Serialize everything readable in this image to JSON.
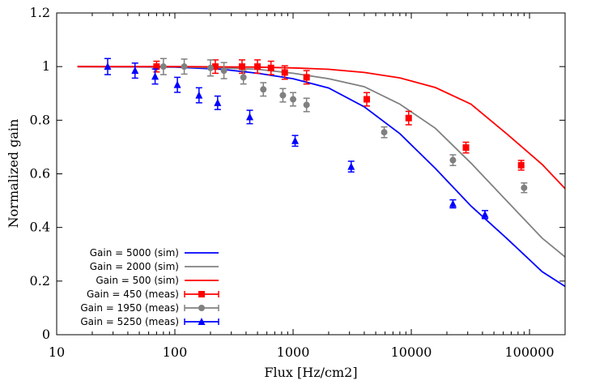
{
  "chart_data": {
    "type": "line",
    "title": "",
    "xlabel": "Flux [Hz/cm2]",
    "ylabel": "Normalized gain",
    "xscale": "log",
    "xlim": [
      10,
      200000
    ],
    "ylim": [
      0,
      1.2
    ],
    "xticks": [
      10,
      100,
      1000,
      10000,
      100000
    ],
    "xtick_labels": [
      "10",
      "100",
      "1000",
      "10000",
      "100000"
    ],
    "yticks": [
      0,
      0.2,
      0.4,
      0.6,
      0.8,
      1.0,
      1.2
    ],
    "ytick_labels": [
      "0",
      "0.2",
      "0.4",
      "0.6",
      "0.8",
      "1",
      "1.2"
    ],
    "legend_position": "bottom-left",
    "series": [
      {
        "name": "Gain = 5000 (sim)",
        "kind": "line",
        "color": "#0000ff",
        "x": [
          15,
          100,
          250,
          500,
          1000,
          2000,
          4000,
          8000,
          16000,
          32000,
          64000,
          128000,
          200000
        ],
        "y": [
          1.0,
          0.998,
          0.99,
          0.975,
          0.955,
          0.92,
          0.85,
          0.75,
          0.62,
          0.48,
          0.36,
          0.235,
          0.18
        ]
      },
      {
        "name": "Gain = 2000 (sim)",
        "kind": "line",
        "color": "#808080",
        "x": [
          15,
          100,
          250,
          500,
          1000,
          2000,
          4000,
          8000,
          16000,
          32000,
          64000,
          128000,
          200000
        ],
        "y": [
          1.0,
          0.999,
          0.995,
          0.99,
          0.975,
          0.955,
          0.925,
          0.86,
          0.77,
          0.64,
          0.5,
          0.36,
          0.29
        ]
      },
      {
        "name": "Gain = 500 (sim)",
        "kind": "line",
        "color": "#ff0000",
        "x": [
          15,
          100,
          250,
          500,
          1000,
          2000,
          4000,
          8000,
          16000,
          32000,
          64000,
          128000,
          200000
        ],
        "y": [
          1.0,
          1.0,
          0.999,
          0.998,
          0.995,
          0.99,
          0.978,
          0.958,
          0.922,
          0.86,
          0.75,
          0.635,
          0.545
        ]
      },
      {
        "name": "Gain = 450 (meas)",
        "kind": "points",
        "marker": "square",
        "color": "#ff0000",
        "x": [
          70,
          220,
          370,
          500,
          650,
          850,
          1300,
          4200,
          9500,
          29000,
          85000
        ],
        "y": [
          1.0,
          1.0,
          1.0,
          1.0,
          0.995,
          0.978,
          0.96,
          0.878,
          0.808,
          0.698,
          0.632
        ],
        "err": [
          0.02,
          0.025,
          0.025,
          0.025,
          0.025,
          0.025,
          0.025,
          0.025,
          0.025,
          0.02,
          0.018
        ]
      },
      {
        "name": "Gain = 1950 (meas)",
        "kind": "points",
        "marker": "circle",
        "color": "#808080",
        "x": [
          80,
          120,
          200,
          260,
          380,
          560,
          820,
          1000,
          1300,
          5900,
          22500,
          90000
        ],
        "y": [
          1.0,
          1.0,
          0.995,
          0.985,
          0.96,
          0.915,
          0.893,
          0.878,
          0.857,
          0.755,
          0.651,
          0.548
        ],
        "err": [
          0.03,
          0.028,
          0.03,
          0.03,
          0.025,
          0.025,
          0.025,
          0.025,
          0.025,
          0.02,
          0.02,
          0.018
        ]
      },
      {
        "name": "Gain = 5250 (meas)",
        "kind": "points",
        "marker": "triangle",
        "color": "#0000ff",
        "x": [
          27,
          46,
          68,
          105,
          160,
          230,
          430,
          1040,
          3100,
          22500,
          42000
        ],
        "y": [
          1.0,
          0.985,
          0.963,
          0.932,
          0.893,
          0.865,
          0.812,
          0.723,
          0.627,
          0.488,
          0.448
        ],
        "err": [
          0.03,
          0.028,
          0.028,
          0.028,
          0.028,
          0.025,
          0.025,
          0.02,
          0.02,
          0.015,
          0.015
        ]
      }
    ],
    "legend_order": [
      "Gain = 5000 (sim)",
      "Gain = 2000 (sim)",
      "Gain = 500 (sim)",
      "Gain = 450 (meas)",
      "Gain = 1950 (meas)",
      "Gain = 5250 (meas)"
    ]
  }
}
